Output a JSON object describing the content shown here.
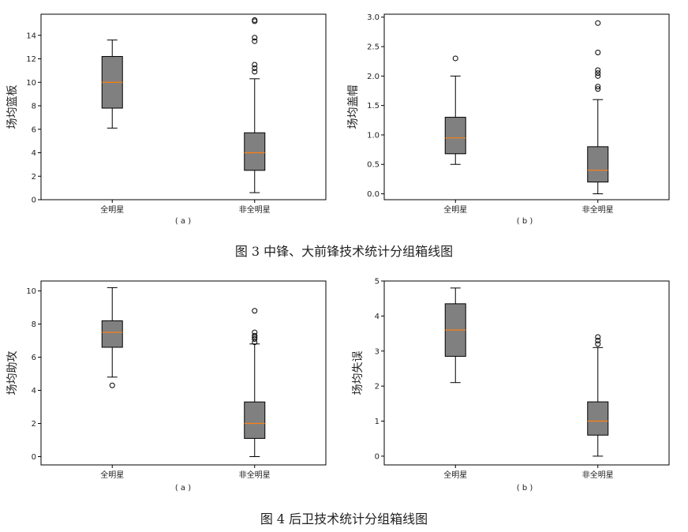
{
  "figures": [
    {
      "caption": "图 3   中锋、大前锋技术统计分组箱线图"
    },
    {
      "caption": "图 4  后卫技术统计分组箱线图"
    }
  ],
  "colors": {
    "box_fill": "#808080",
    "median": "#ff7f0e",
    "line": "#000000",
    "frame": "#000000"
  },
  "chart_data": [
    {
      "type": "box",
      "panel_label": "( a )",
      "ylabel": "场均篮板",
      "categories": [
        "全明星",
        "非全明星"
      ],
      "ylim": [
        0,
        15.8
      ],
      "yticks": [
        0,
        2,
        4,
        6,
        8,
        10,
        12,
        14
      ],
      "tick_labels": [
        "0",
        "2",
        "4",
        "6",
        "8",
        "10",
        "12",
        "14"
      ],
      "grid": false,
      "boxes": [
        {
          "whisker_low": 6.1,
          "q1": 7.8,
          "median": 10.0,
          "q3": 12.2,
          "whisker_high": 13.6,
          "outliers": []
        },
        {
          "whisker_low": 0.6,
          "q1": 2.5,
          "median": 4.0,
          "q3": 5.7,
          "whisker_high": 10.3,
          "outliers": [
            10.9,
            11.2,
            11.5,
            13.5,
            13.8,
            15.2,
            15.3
          ]
        }
      ]
    },
    {
      "type": "box",
      "panel_label": "( b )",
      "ylabel": "场均盖帽",
      "categories": [
        "全明星",
        "非全明星"
      ],
      "ylim": [
        -0.1,
        3.05
      ],
      "yticks": [
        0.0,
        0.5,
        1.0,
        1.5,
        2.0,
        2.5,
        3.0
      ],
      "tick_labels": [
        "0.0",
        "0.5",
        "1.0",
        "1.5",
        "2.0",
        "2.5",
        "3.0"
      ],
      "grid": false,
      "boxes": [
        {
          "whisker_low": 0.5,
          "q1": 0.68,
          "median": 0.95,
          "q3": 1.3,
          "whisker_high": 2.0,
          "outliers": [
            2.3
          ]
        },
        {
          "whisker_low": 0.0,
          "q1": 0.2,
          "median": 0.4,
          "q3": 0.8,
          "whisker_high": 1.6,
          "outliers": [
            1.78,
            1.82,
            2.0,
            2.05,
            2.1,
            2.4,
            2.9
          ]
        }
      ]
    },
    {
      "type": "box",
      "panel_label": "( a )",
      "ylabel": "场均助攻",
      "categories": [
        "全明星",
        "非全明星"
      ],
      "ylim": [
        -0.5,
        10.6
      ],
      "yticks": [
        0,
        2,
        4,
        6,
        8,
        10
      ],
      "tick_labels": [
        "0",
        "2",
        "4",
        "6",
        "8",
        "10"
      ],
      "grid": false,
      "boxes": [
        {
          "whisker_low": 4.8,
          "q1": 6.6,
          "median": 7.5,
          "q3": 8.2,
          "whisker_high": 10.2,
          "outliers": [
            4.3
          ]
        },
        {
          "whisker_low": 0.0,
          "q1": 1.1,
          "median": 2.0,
          "q3": 3.3,
          "whisker_high": 6.8,
          "outliers": [
            6.9,
            7.1,
            7.2,
            7.3,
            7.5,
            8.8
          ]
        }
      ]
    },
    {
      "type": "box",
      "panel_label": "( b )",
      "ylabel": "场均失误",
      "categories": [
        "全明星",
        "非全明星"
      ],
      "ylim": [
        -0.25,
        5.0
      ],
      "yticks": [
        0,
        1,
        2,
        3,
        4,
        5
      ],
      "tick_labels": [
        "0",
        "1",
        "2",
        "3",
        "4",
        "5"
      ],
      "grid": false,
      "boxes": [
        {
          "whisker_low": 2.1,
          "q1": 2.85,
          "median": 3.6,
          "q3": 4.35,
          "whisker_high": 4.8,
          "outliers": []
        },
        {
          "whisker_low": 0.0,
          "q1": 0.6,
          "median": 1.0,
          "q3": 1.55,
          "whisker_high": 3.1,
          "outliers": [
            3.2,
            3.3,
            3.4
          ]
        }
      ]
    }
  ]
}
